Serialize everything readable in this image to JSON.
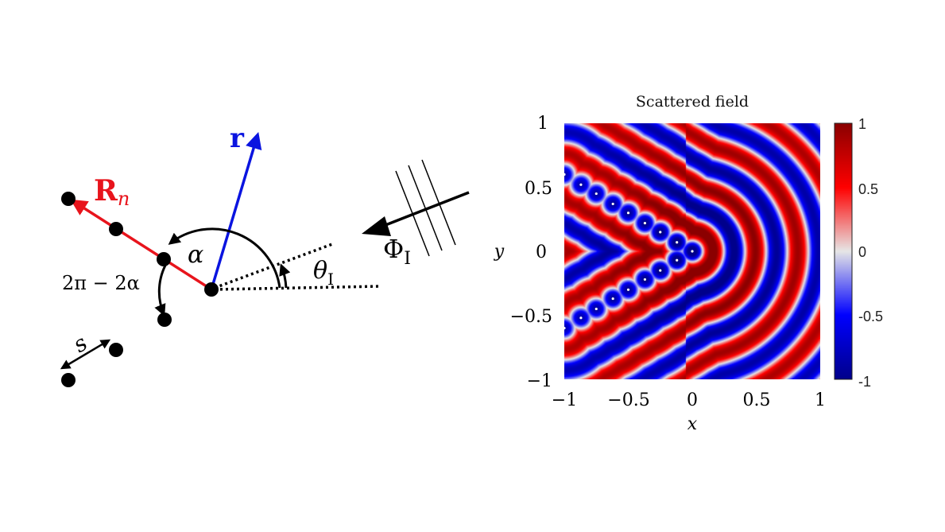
{
  "diagram": {
    "label_R": "R",
    "label_R_sub": "n",
    "label_r": "r",
    "label_alpha": "α",
    "label_2pi": "2π − 2α",
    "label_s": "s",
    "label_theta": "θ",
    "label_theta_sub": "I",
    "label_phi": "Φ",
    "label_phi_sub": "I",
    "colors": {
      "R_arrow": "#e8141c",
      "r_arrow": "#0a14e0",
      "ink": "#000000"
    }
  },
  "heatmap": {
    "title": "Scattered field",
    "xlabel": "x",
    "ylabel": "y",
    "x_ticks": [
      "−1",
      "−0.5",
      "0",
      "0.5",
      "1"
    ],
    "y_ticks": [
      "1",
      "0.5",
      "0",
      "−0.5",
      "−1"
    ],
    "colorbar_ticks": [
      "1",
      "0.5",
      "0",
      "-0.5",
      "-1"
    ],
    "colormap": {
      "low": "#00008b",
      "mid": "#e6e6e6",
      "high": "#8b0000"
    }
  },
  "chart_data": {
    "type": "heatmap",
    "title": "Scattered field",
    "xlabel": "x",
    "ylabel": "y",
    "xlim": [
      -1,
      1
    ],
    "ylim": [
      -1,
      1
    ],
    "clim": [
      -1,
      1
    ],
    "scatterer_points": [
      [
        0,
        0
      ],
      [
        -0.12,
        0.07
      ],
      [
        -0.12,
        -0.07
      ],
      [
        -0.25,
        0.15
      ],
      [
        -0.25,
        -0.15
      ],
      [
        -0.37,
        0.22
      ],
      [
        -0.37,
        -0.22
      ],
      [
        -0.5,
        0.3
      ],
      [
        -0.5,
        -0.3
      ],
      [
        -0.62,
        0.37
      ],
      [
        -0.62,
        -0.37
      ],
      [
        -0.75,
        0.45
      ],
      [
        -0.75,
        -0.45
      ],
      [
        -0.87,
        0.52
      ],
      [
        -0.87,
        -0.52
      ],
      [
        -1.0,
        0.6
      ],
      [
        -1.0,
        -0.6
      ]
    ]
  }
}
